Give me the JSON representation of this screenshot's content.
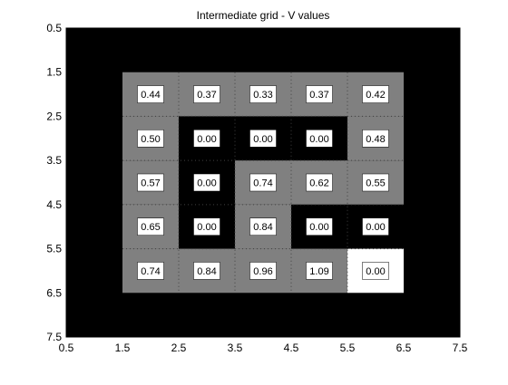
{
  "chart_data": {
    "type": "heatmap",
    "title": "Intermediate grid - V values",
    "xlabel": "",
    "ylabel": "",
    "xlim": [
      0.5,
      7.5
    ],
    "ylim": [
      0.5,
      7.5
    ],
    "y_reversed": true,
    "xticks": [
      "0.5",
      "1.5",
      "2.5",
      "3.5",
      "4.5",
      "5.5",
      "6.5",
      "7.5"
    ],
    "yticks": [
      "0.5",
      "1.5",
      "2.5",
      "3.5",
      "4.5",
      "5.5",
      "6.5",
      "7.5"
    ],
    "grid": "dotted lines between interior cells",
    "colors": {
      "background": "#000000",
      "wall": "#000000",
      "open": "#808080",
      "goal": "#ffffff",
      "label_box": "#ffffff",
      "label_text": "#000000"
    },
    "cells": [
      {
        "row": 2,
        "col": 2,
        "state": "open",
        "value": "0.44"
      },
      {
        "row": 2,
        "col": 3,
        "state": "open",
        "value": "0.37"
      },
      {
        "row": 2,
        "col": 4,
        "state": "open",
        "value": "0.33"
      },
      {
        "row": 2,
        "col": 5,
        "state": "open",
        "value": "0.37"
      },
      {
        "row": 2,
        "col": 6,
        "state": "open",
        "value": "0.42"
      },
      {
        "row": 3,
        "col": 2,
        "state": "open",
        "value": "0.50"
      },
      {
        "row": 3,
        "col": 3,
        "state": "wall",
        "value": "0.00"
      },
      {
        "row": 3,
        "col": 4,
        "state": "wall",
        "value": "0.00"
      },
      {
        "row": 3,
        "col": 5,
        "state": "wall",
        "value": "0.00"
      },
      {
        "row": 3,
        "col": 6,
        "state": "open",
        "value": "0.48"
      },
      {
        "row": 4,
        "col": 2,
        "state": "open",
        "value": "0.57"
      },
      {
        "row": 4,
        "col": 3,
        "state": "wall",
        "value": "0.00"
      },
      {
        "row": 4,
        "col": 4,
        "state": "open",
        "value": "0.74"
      },
      {
        "row": 4,
        "col": 5,
        "state": "open",
        "value": "0.62"
      },
      {
        "row": 4,
        "col": 6,
        "state": "open",
        "value": "0.55"
      },
      {
        "row": 5,
        "col": 2,
        "state": "open",
        "value": "0.65"
      },
      {
        "row": 5,
        "col": 3,
        "state": "wall",
        "value": "0.00"
      },
      {
        "row": 5,
        "col": 4,
        "state": "open",
        "value": "0.84"
      },
      {
        "row": 5,
        "col": 5,
        "state": "wall",
        "value": "0.00"
      },
      {
        "row": 5,
        "col": 6,
        "state": "wall",
        "value": "0.00"
      },
      {
        "row": 6,
        "col": 2,
        "state": "open",
        "value": "0.74"
      },
      {
        "row": 6,
        "col": 3,
        "state": "open",
        "value": "0.84"
      },
      {
        "row": 6,
        "col": 4,
        "state": "open",
        "value": "0.96"
      },
      {
        "row": 6,
        "col": 5,
        "state": "open",
        "value": "1.09"
      },
      {
        "row": 6,
        "col": 6,
        "state": "goal",
        "value": "0.00"
      }
    ]
  }
}
